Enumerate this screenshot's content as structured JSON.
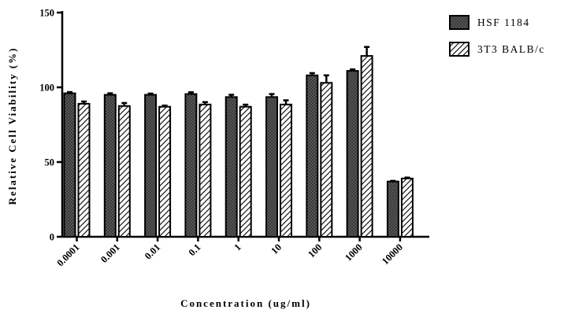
{
  "chart_data": {
    "type": "bar",
    "title": "",
    "xlabel": "Concentration (ug/ml)",
    "ylabel": "Relative Cell Viability (%)",
    "ylim": [
      0,
      150
    ],
    "yticks": [
      "0",
      "50",
      "100",
      "150"
    ],
    "categories": [
      "0.0001",
      "0.001",
      "0.01",
      "0.1",
      "1",
      "10",
      "100",
      "1000",
      "10000"
    ],
    "series": [
      {
        "name": "HSF 1184",
        "values": [
          96,
          95,
          95,
          95.5,
          93.5,
          93.5,
          108,
          111,
          37
        ],
        "errors": [
          0.8,
          1.0,
          0.8,
          1.2,
          1.5,
          2.0,
          1.5,
          1.0,
          0.4
        ]
      },
      {
        "name": "3T3 BALB/c",
        "values": [
          89,
          87.5,
          87,
          88.5,
          87,
          88.5,
          103,
          121,
          39
        ],
        "errors": [
          1.5,
          2.0,
          0.8,
          1.6,
          1.4,
          2.8,
          5.0,
          6.0,
          0.6
        ]
      }
    ],
    "legend_position": "top-right",
    "grid": false,
    "colors": {
      "series_1": "#3a3a3a",
      "series_2": "#ffffff",
      "axis": "#000000"
    }
  }
}
